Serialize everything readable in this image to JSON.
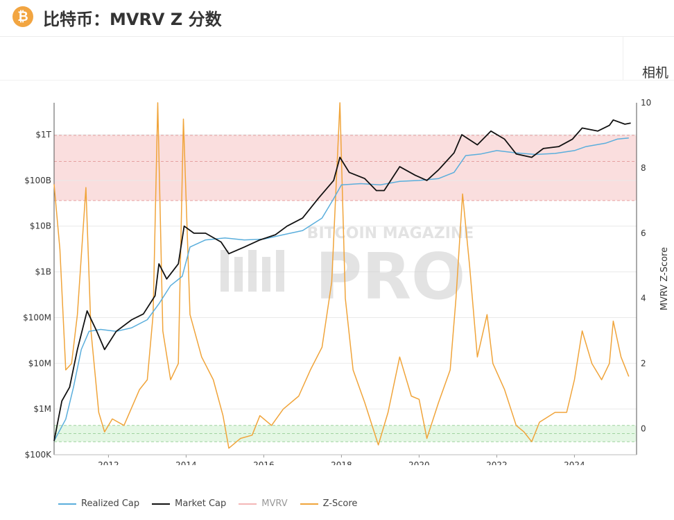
{
  "header": {
    "logo": "₿",
    "title": "比特币：MVRV Z 分数"
  },
  "toolbar": {
    "camera_label": "相机"
  },
  "watermark": {
    "line1": "BITCOIN MAGAZINE",
    "line2": "PRO"
  },
  "colors": {
    "realized_cap": "#5aaedc",
    "market_cap": "#111111",
    "mvrv_band": "#f4b6b6",
    "z_score": "#f0a43a",
    "green_band": "#c9f0c9"
  },
  "chart_data": {
    "type": "line",
    "x_ticks": [
      "2012",
      "2014",
      "2016",
      "2018",
      "2020",
      "2022",
      "2024"
    ],
    "x_range": [
      2010.6,
      2025.6
    ],
    "y_left": {
      "scale": "log",
      "ticks": [
        "$100K",
        "$1M",
        "$10M",
        "$100M",
        "$1B",
        "$10B",
        "$100B",
        "$1T"
      ],
      "range_usd": [
        100000,
        5000000000000
      ]
    },
    "y_right": {
      "label": "MVRV Z-Score",
      "ticks": [
        "0",
        "2",
        "4",
        "6",
        "8",
        "10"
      ],
      "range": [
        -0.8,
        10
      ]
    },
    "bands": [
      {
        "name": "overvalued",
        "from_z": 7.0,
        "to_z": 9.0,
        "mid_z": 8.2
      },
      {
        "name": "undervalued",
        "from_z": -0.4,
        "to_z": 0.1,
        "mid_z": -0.15
      }
    ],
    "series": [
      {
        "name": "Realized Cap",
        "axis": "left",
        "points": [
          [
            2010.6,
            200000
          ],
          [
            2010.9,
            600000
          ],
          [
            2011.1,
            3000000
          ],
          [
            2011.3,
            20000000
          ],
          [
            2011.5,
            50000000
          ],
          [
            2011.8,
            55000000
          ],
          [
            2012.2,
            50000000
          ],
          [
            2012.6,
            60000000
          ],
          [
            2013.0,
            90000000
          ],
          [
            2013.3,
            200000000
          ],
          [
            2013.6,
            500000000
          ],
          [
            2013.9,
            800000000
          ],
          [
            2014.1,
            3500000000
          ],
          [
            2014.5,
            5000000000
          ],
          [
            2015.0,
            5500000000
          ],
          [
            2015.5,
            5000000000
          ],
          [
            2016.0,
            5200000000
          ],
          [
            2016.5,
            6500000000
          ],
          [
            2017.0,
            8000000000
          ],
          [
            2017.5,
            15000000000
          ],
          [
            2017.8,
            40000000000
          ],
          [
            2018.0,
            80000000000
          ],
          [
            2018.5,
            85000000000
          ],
          [
            2019.0,
            80000000000
          ],
          [
            2019.5,
            95000000000
          ],
          [
            2020.0,
            100000000000
          ],
          [
            2020.5,
            110000000000
          ],
          [
            2020.9,
            150000000000
          ],
          [
            2021.2,
            350000000000
          ],
          [
            2021.6,
            380000000000
          ],
          [
            2022.0,
            450000000000
          ],
          [
            2022.5,
            400000000000
          ],
          [
            2023.0,
            370000000000
          ],
          [
            2023.5,
            390000000000
          ],
          [
            2024.0,
            450000000000
          ],
          [
            2024.3,
            550000000000
          ],
          [
            2024.8,
            650000000000
          ],
          [
            2025.1,
            800000000000
          ],
          [
            2025.4,
            850000000000
          ]
        ]
      },
      {
        "name": "Market Cap",
        "axis": "left",
        "points": [
          [
            2010.6,
            200000
          ],
          [
            2010.8,
            1500000
          ],
          [
            2011.0,
            3000000
          ],
          [
            2011.2,
            20000000
          ],
          [
            2011.45,
            140000000
          ],
          [
            2011.7,
            50000000
          ],
          [
            2011.9,
            20000000
          ],
          [
            2012.2,
            50000000
          ],
          [
            2012.6,
            90000000
          ],
          [
            2012.9,
            120000000
          ],
          [
            2013.2,
            300000000
          ],
          [
            2013.3,
            1500000000
          ],
          [
            2013.5,
            700000000
          ],
          [
            2013.8,
            1500000000
          ],
          [
            2013.95,
            10000000000
          ],
          [
            2014.2,
            7000000000
          ],
          [
            2014.5,
            7000000000
          ],
          [
            2014.9,
            4500000000
          ],
          [
            2015.1,
            2500000000
          ],
          [
            2015.5,
            3500000000
          ],
          [
            2015.9,
            5000000000
          ],
          [
            2016.3,
            6500000000
          ],
          [
            2016.6,
            10000000000
          ],
          [
            2017.0,
            15000000000
          ],
          [
            2017.4,
            40000000000
          ],
          [
            2017.8,
            100000000000
          ],
          [
            2017.96,
            320000000000
          ],
          [
            2018.2,
            150000000000
          ],
          [
            2018.6,
            110000000000
          ],
          [
            2018.9,
            60000000000
          ],
          [
            2019.1,
            60000000000
          ],
          [
            2019.5,
            200000000000
          ],
          [
            2019.9,
            130000000000
          ],
          [
            2020.2,
            100000000000
          ],
          [
            2020.5,
            170000000000
          ],
          [
            2020.9,
            400000000000
          ],
          [
            2021.1,
            1000000000000
          ],
          [
            2021.5,
            600000000000
          ],
          [
            2021.85,
            1200000000000
          ],
          [
            2022.2,
            800000000000
          ],
          [
            2022.5,
            380000000000
          ],
          [
            2022.9,
            320000000000
          ],
          [
            2023.2,
            500000000000
          ],
          [
            2023.6,
            550000000000
          ],
          [
            2023.95,
            800000000000
          ],
          [
            2024.2,
            1400000000000
          ],
          [
            2024.6,
            1200000000000
          ],
          [
            2024.9,
            1600000000000
          ],
          [
            2025.0,
            2100000000000
          ],
          [
            2025.3,
            1700000000000
          ],
          [
            2025.45,
            1800000000000
          ]
        ]
      },
      {
        "name": "MVRV",
        "axis": "right",
        "points": []
      },
      {
        "name": "Z-Score",
        "axis": "right",
        "points": [
          [
            2010.6,
            7.5
          ],
          [
            2010.75,
            5.5
          ],
          [
            2010.9,
            1.8
          ],
          [
            2011.05,
            2.0
          ],
          [
            2011.2,
            3.5
          ],
          [
            2011.42,
            7.4
          ],
          [
            2011.55,
            3.0
          ],
          [
            2011.75,
            0.5
          ],
          [
            2011.9,
            -0.1
          ],
          [
            2012.1,
            0.3
          ],
          [
            2012.4,
            0.1
          ],
          [
            2012.8,
            1.2
          ],
          [
            2013.0,
            1.5
          ],
          [
            2013.15,
            3.5
          ],
          [
            2013.27,
            10.0
          ],
          [
            2013.4,
            3.0
          ],
          [
            2013.6,
            1.5
          ],
          [
            2013.8,
            2.0
          ],
          [
            2013.93,
            9.5
          ],
          [
            2014.1,
            3.5
          ],
          [
            2014.4,
            2.2
          ],
          [
            2014.7,
            1.5
          ],
          [
            2014.95,
            0.4
          ],
          [
            2015.1,
            -0.6
          ],
          [
            2015.4,
            -0.3
          ],
          [
            2015.7,
            -0.2
          ],
          [
            2015.9,
            0.4
          ],
          [
            2016.2,
            0.1
          ],
          [
            2016.5,
            0.6
          ],
          [
            2016.9,
            1.0
          ],
          [
            2017.2,
            1.8
          ],
          [
            2017.5,
            2.5
          ],
          [
            2017.75,
            4.5
          ],
          [
            2017.96,
            10.0
          ],
          [
            2018.1,
            4.0
          ],
          [
            2018.3,
            1.8
          ],
          [
            2018.6,
            0.8
          ],
          [
            2018.95,
            -0.5
          ],
          [
            2019.2,
            0.5
          ],
          [
            2019.5,
            2.2
          ],
          [
            2019.8,
            1.0
          ],
          [
            2020.0,
            0.9
          ],
          [
            2020.2,
            -0.3
          ],
          [
            2020.5,
            0.8
          ],
          [
            2020.8,
            1.8
          ],
          [
            2020.95,
            4.0
          ],
          [
            2021.12,
            7.2
          ],
          [
            2021.3,
            5.0
          ],
          [
            2021.5,
            2.2
          ],
          [
            2021.75,
            3.5
          ],
          [
            2021.9,
            2.0
          ],
          [
            2022.2,
            1.2
          ],
          [
            2022.5,
            0.1
          ],
          [
            2022.7,
            -0.1
          ],
          [
            2022.9,
            -0.4
          ],
          [
            2023.1,
            0.2
          ],
          [
            2023.5,
            0.5
          ],
          [
            2023.8,
            0.5
          ],
          [
            2024.0,
            1.5
          ],
          [
            2024.2,
            3.0
          ],
          [
            2024.45,
            2.0
          ],
          [
            2024.7,
            1.5
          ],
          [
            2024.9,
            2.0
          ],
          [
            2025.0,
            3.3
          ],
          [
            2025.2,
            2.2
          ],
          [
            2025.4,
            1.6
          ]
        ]
      }
    ],
    "legend": {
      "placement": "bottom-left",
      "items": [
        "Realized Cap",
        "Market Cap",
        "MVRV",
        "Z-Score"
      ]
    }
  }
}
